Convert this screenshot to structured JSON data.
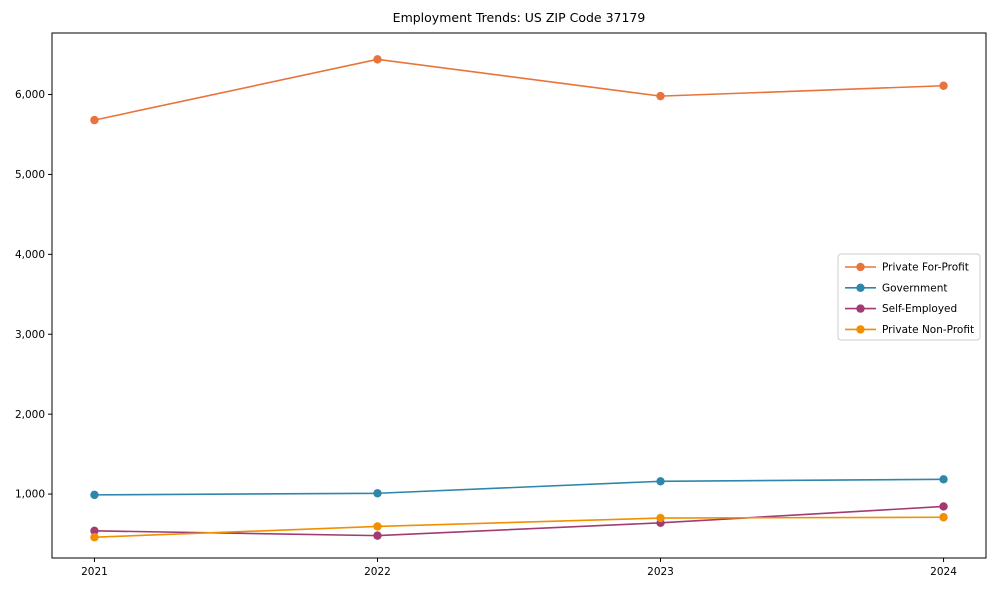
{
  "window": {
    "background": "#ffffff"
  },
  "chart_data": {
    "type": "line",
    "title": "Employment Trends: US ZIP Code 37179",
    "xlabel": "",
    "ylabel": "",
    "categories": [
      "2021",
      "2022",
      "2023",
      "2024"
    ],
    "series": [
      {
        "name": "Private For-Profit",
        "color": "#E8743B",
        "values": [
          5680,
          6440,
          5980,
          6110
        ]
      },
      {
        "name": "Government",
        "color": "#2E86AB",
        "values": [
          990,
          1010,
          1160,
          1185
        ]
      },
      {
        "name": "Self-Employed",
        "color": "#A23B72",
        "values": [
          540,
          480,
          640,
          845
        ]
      },
      {
        "name": "Private Non-Profit",
        "color": "#F18F01",
        "values": [
          460,
          595,
          700,
          710
        ]
      }
    ],
    "yticks": {
      "values": [
        1000,
        2000,
        3000,
        4000,
        5000,
        6000
      ],
      "labels": [
        "1,000",
        "2,000",
        "3,000",
        "4,000",
        "5,000",
        "6,000"
      ]
    },
    "ylim": [
      200,
      6770
    ],
    "grid": false,
    "legend_position": "center-right",
    "marker": "circle",
    "axis_color": "#000000",
    "legend_border_color": "#cccccc"
  }
}
